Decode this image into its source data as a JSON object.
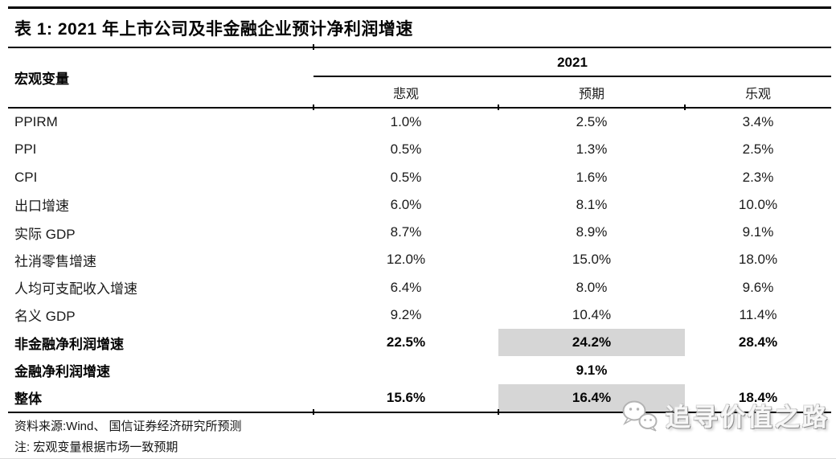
{
  "title": "表 1: 2021 年上市公司及非金融企业预计净利润增速",
  "table": {
    "macro_header": "宏观变量",
    "year_header": "2021",
    "scenario_headers": [
      "悲观",
      "预期",
      "乐观"
    ],
    "rows": [
      {
        "label": "PPIRM",
        "pessimistic": "1.0%",
        "expected": "2.5%",
        "optimistic": "3.4%",
        "bold": false,
        "highlight_expected": false
      },
      {
        "label": "PPI",
        "pessimistic": "0.5%",
        "expected": "1.3%",
        "optimistic": "2.5%",
        "bold": false,
        "highlight_expected": false
      },
      {
        "label": "CPI",
        "pessimistic": "0.5%",
        "expected": "1.6%",
        "optimistic": "2.3%",
        "bold": false,
        "highlight_expected": false
      },
      {
        "label": "出口增速",
        "pessimistic": "6.0%",
        "expected": "8.1%",
        "optimistic": "10.0%",
        "bold": false,
        "highlight_expected": false
      },
      {
        "label": "实际 GDP",
        "pessimistic": "8.7%",
        "expected": "8.9%",
        "optimistic": "9.1%",
        "bold": false,
        "highlight_expected": false
      },
      {
        "label": "社消零售增速",
        "pessimistic": "12.0%",
        "expected": "15.0%",
        "optimistic": "18.0%",
        "bold": false,
        "highlight_expected": false
      },
      {
        "label": "人均可支配收入增速",
        "pessimistic": "6.4%",
        "expected": "8.0%",
        "optimistic": "9.6%",
        "bold": false,
        "highlight_expected": false
      },
      {
        "label": "名义 GDP",
        "pessimistic": "9.2%",
        "expected": "10.4%",
        "optimistic": "11.4%",
        "bold": false,
        "highlight_expected": false
      },
      {
        "label": "非金融净利润增速",
        "pessimistic": "22.5%",
        "expected": "24.2%",
        "optimistic": "28.4%",
        "bold": true,
        "highlight_expected": true
      },
      {
        "label": "金融净利润增速",
        "pessimistic": "",
        "expected": "9.1%",
        "optimistic": "",
        "bold": true,
        "highlight_expected": false
      },
      {
        "label": "整体",
        "pessimistic": "15.6%",
        "expected": "16.4%",
        "optimistic": "18.4%",
        "bold": true,
        "highlight_expected": true
      }
    ]
  },
  "footer": {
    "source": "资料来源:Wind、 国信证券经济研究所预测",
    "note": "注: 宏观变量根据市场一致预期"
  },
  "watermark": {
    "text": "追寻价值之路",
    "icon": "wechat-icon"
  },
  "colors": {
    "highlight_cell": "#d6d6d6",
    "rule": "#000000",
    "watermark_text": "#f7f7f7",
    "watermark_shadow": "#8c8c8c"
  }
}
